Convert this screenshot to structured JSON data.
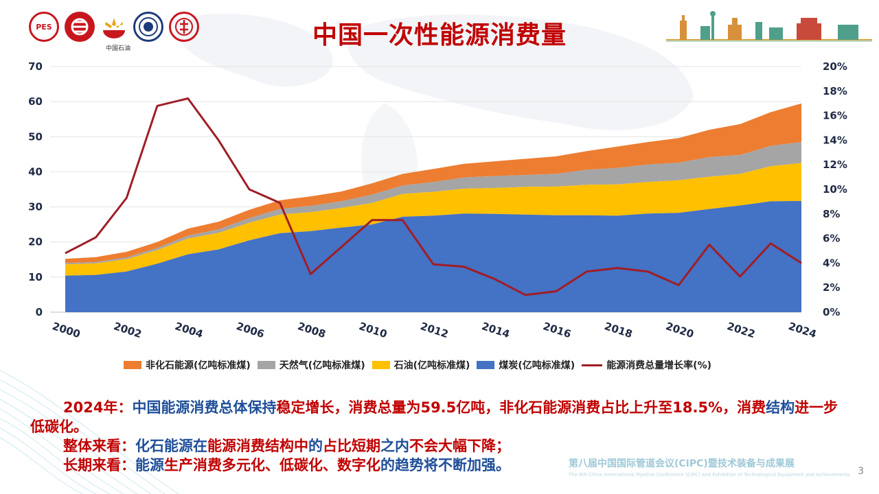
{
  "header": {
    "title": "中国一次性能源消费量",
    "logo_caption": "中国石油",
    "logo1_text": "PES"
  },
  "chart_data": {
    "type": "area",
    "x": [
      2000,
      2001,
      2002,
      2003,
      2004,
      2005,
      2006,
      2007,
      2008,
      2009,
      2010,
      2011,
      2012,
      2013,
      2014,
      2015,
      2016,
      2017,
      2018,
      2019,
      2020,
      2021,
      2022,
      2023,
      2024
    ],
    "x_ticks": [
      "2000",
      "2002",
      "2004",
      "2006",
      "2008",
      "2010",
      "2012",
      "2014",
      "2016",
      "2018",
      "2020",
      "2022",
      "2024"
    ],
    "y_left_ticks": [
      "0",
      "10",
      "20",
      "30",
      "40",
      "50",
      "60",
      "70"
    ],
    "y_right_ticks": [
      "0%",
      "2%",
      "4%",
      "6%",
      "8%",
      "10%",
      "12%",
      "14%",
      "16%",
      "18%",
      "20%"
    ],
    "ylim_left": [
      0,
      70
    ],
    "ylim_right": [
      0,
      20
    ],
    "series": [
      {
        "name": "煤炭(亿吨标准煤)",
        "color": "#4472c4",
        "values": [
          10.4,
          10.6,
          11.6,
          13.8,
          16.5,
          17.9,
          20.5,
          22.5,
          23.1,
          24.1,
          25.0,
          27.2,
          27.5,
          28.1,
          28.0,
          27.8,
          27.6,
          27.6,
          27.5,
          28.1,
          28.3,
          29.4,
          30.4,
          31.6,
          31.7
        ]
      },
      {
        "name": "石油(亿吨标准煤)",
        "color": "#ffc000",
        "values": [
          3.2,
          3.3,
          3.5,
          3.9,
          4.5,
          4.7,
          5.0,
          5.3,
          5.4,
          5.6,
          6.1,
          6.5,
          6.8,
          7.1,
          7.4,
          7.9,
          8.2,
          8.7,
          8.9,
          9.0,
          9.3,
          9.2,
          9.0,
          10.0,
          10.8
        ]
      },
      {
        "name": "天然气(亿吨标准煤)",
        "color": "#a5a5a5",
        "values": [
          0.4,
          0.4,
          0.5,
          0.6,
          0.8,
          1.0,
          1.3,
          1.6,
          1.8,
          1.9,
          2.4,
          2.4,
          2.8,
          3.2,
          3.4,
          3.4,
          3.6,
          4.3,
          4.7,
          5.0,
          5.0,
          5.6,
          5.4,
          5.8,
          6.0
        ]
      },
      {
        "name": "非化石能源(亿吨标准煤)",
        "color": "#ed7d31",
        "values": [
          1.2,
          1.4,
          1.6,
          1.7,
          2.0,
          2.2,
          2.4,
          2.5,
          2.7,
          2.8,
          3.2,
          3.3,
          3.7,
          3.9,
          4.2,
          4.6,
          5.0,
          5.3,
          6.1,
          6.4,
          7.0,
          7.8,
          8.8,
          9.6,
          11.0
        ]
      }
    ],
    "line_series": {
      "name": "能源消费总量增长率(%)",
      "color": "#a01d26",
      "axis": "right",
      "values": [
        4.8,
        6.1,
        9.3,
        16.8,
        17.4,
        14.0,
        10.0,
        8.9,
        3.1,
        5.3,
        7.5,
        7.5,
        3.9,
        3.7,
        2.7,
        1.4,
        1.7,
        3.3,
        3.6,
        3.3,
        2.2,
        5.5,
        2.9,
        5.6,
        4.0
      ]
    }
  },
  "legend": {
    "items": [
      {
        "label": "非化石能源(亿吨标准煤)",
        "color": "#ed7d31"
      },
      {
        "label": "天然气(亿吨标准煤)",
        "color": "#a5a5a5"
      },
      {
        "label": "石油(亿吨标准煤)",
        "color": "#ffc000"
      },
      {
        "label": "煤炭(亿吨标准煤)",
        "color": "#4472c4"
      },
      {
        "label": "能源消费总量增长率(%)",
        "color": "#a01d26"
      }
    ]
  },
  "summary": {
    "p1_year": "2024年：",
    "p1_a": "中国能源消费总体保持",
    "p1_b": "稳定增长，消费总量为59.5亿吨，非化石能源消费占比上升至18.5%，消费",
    "p1_c": "结构",
    "p1_d": "进一步低碳化。",
    "p2_lead": "整体来看：",
    "p2_a": "化石能源在",
    "p2_b": "能源消费结构中",
    "p2_c": "的",
    "p2_d": "占比短期",
    "p2_e": "之内",
    "p2_f": "不会大幅下降；",
    "p3_lead": "长期来看：",
    "p3_a": "能源",
    "p3_b": "生产消费多元化、低碳化、数字化",
    "p3_c": "的趋势将不断加强。"
  },
  "footer": {
    "conference": "第八届中国国际管道会议(CIPC)暨技术装备与成果展",
    "conference_en": "The 8th China International Pipeline Conference (CIPC) and Exhibition of Technological Equipment and Achievements",
    "page_number": "3"
  }
}
